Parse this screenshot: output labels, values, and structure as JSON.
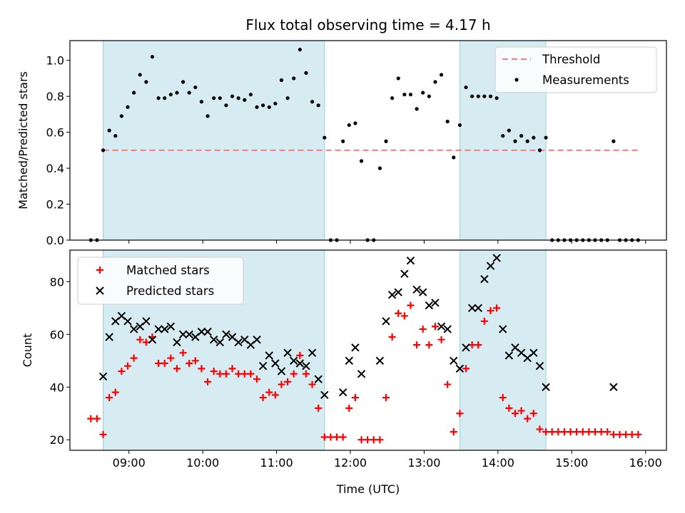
{
  "title": "Flux total observing time = 4.17 h",
  "colors": {
    "threshold": "#f08080",
    "measurements": "#000000",
    "matched": "#ff0000",
    "predicted": "#000000",
    "span": "#add8e6"
  },
  "chart_data": [
    {
      "type": "scatter",
      "ylabel": "Matched/Predicted stars",
      "xlabel": "",
      "xlim": [
        "08:12",
        "16:17"
      ],
      "ylim": [
        0,
        1.11
      ],
      "yticks": [
        "0.0",
        "0.2",
        "0.4",
        "0.6",
        "0.8",
        "1.0"
      ],
      "yticks_values": [
        0,
        0.2,
        0.4,
        0.6,
        0.8,
        1.0
      ],
      "xticks": [
        "09:00",
        "10:00",
        "11:00",
        "12:00",
        "13:00",
        "14:00",
        "15:00",
        "16:00"
      ],
      "legend": {
        "placement": "upper right",
        "entries": [
          "Threshold",
          "Measurements"
        ]
      },
      "shaded_spans": [
        [
          "08:39",
          "11:39"
        ],
        [
          "13:29",
          "14:39"
        ]
      ],
      "threshold": {
        "name": "Threshold",
        "y": 0.5,
        "x_range": [
          "08:39",
          "15:54"
        ]
      },
      "series": [
        {
          "name": "Measurements",
          "points": [
            [
              "08:29",
              0
            ],
            [
              "08:34",
              0
            ],
            [
              "08:39",
              0.5
            ],
            [
              "08:44",
              0.61
            ],
            [
              "08:49",
              0.58
            ],
            [
              "08:54",
              0.69
            ],
            [
              "08:59",
              0.74
            ],
            [
              "09:04",
              0.82
            ],
            [
              "09:09",
              0.92
            ],
            [
              "09:14",
              0.88
            ],
            [
              "09:19",
              1.02
            ],
            [
              "09:24",
              0.79
            ],
            [
              "09:29",
              0.79
            ],
            [
              "09:34",
              0.81
            ],
            [
              "09:39",
              0.82
            ],
            [
              "09:44",
              0.88
            ],
            [
              "09:49",
              0.82
            ],
            [
              "09:54",
              0.85
            ],
            [
              "09:59",
              0.77
            ],
            [
              "10:04",
              0.69
            ],
            [
              "10:09",
              0.79
            ],
            [
              "10:14",
              0.79
            ],
            [
              "10:19",
              0.75
            ],
            [
              "10:24",
              0.8
            ],
            [
              "10:29",
              0.79
            ],
            [
              "10:34",
              0.78
            ],
            [
              "10:39",
              0.81
            ],
            [
              "10:44",
              0.74
            ],
            [
              "10:49",
              0.75
            ],
            [
              "10:54",
              0.74
            ],
            [
              "10:59",
              0.76
            ],
            [
              "11:04",
              0.89
            ],
            [
              "11:09",
              0.79
            ],
            [
              "11:14",
              0.9
            ],
            [
              "11:19",
              1.06
            ],
            [
              "11:24",
              0.93
            ],
            [
              "11:29",
              0.77
            ],
            [
              "11:34",
              0.75
            ],
            [
              "11:39",
              0.57
            ],
            [
              "11:44",
              0
            ],
            [
              "11:49",
              0
            ],
            [
              "11:54",
              0.55
            ],
            [
              "11:59",
              0.64
            ],
            [
              "12:04",
              0.65
            ],
            [
              "12:09",
              0.44
            ],
            [
              "12:14",
              0
            ],
            [
              "12:19",
              0
            ],
            [
              "12:24",
              0.4
            ],
            [
              "12:29",
              0.55
            ],
            [
              "12:34",
              0.79
            ],
            [
              "12:39",
              0.9
            ],
            [
              "12:44",
              0.81
            ],
            [
              "12:49",
              0.81
            ],
            [
              "12:54",
              0.73
            ],
            [
              "12:59",
              0.82
            ],
            [
              "13:04",
              0.8
            ],
            [
              "13:09",
              0.88
            ],
            [
              "13:14",
              0.92
            ],
            [
              "13:19",
              0.66
            ],
            [
              "13:24",
              0.46
            ],
            [
              "13:29",
              0.64
            ],
            [
              "13:34",
              0.85
            ],
            [
              "13:39",
              0.8
            ],
            [
              "13:44",
              0.8
            ],
            [
              "13:49",
              0.8
            ],
            [
              "13:54",
              0.8
            ],
            [
              "13:59",
              0.79
            ],
            [
              "14:04",
              0.58
            ],
            [
              "14:09",
              0.61
            ],
            [
              "14:14",
              0.55
            ],
            [
              "14:19",
              0.58
            ],
            [
              "14:24",
              0.55
            ],
            [
              "14:29",
              0.57
            ],
            [
              "14:34",
              0.5
            ],
            [
              "14:39",
              0.57
            ],
            [
              "14:44",
              0
            ],
            [
              "14:49",
              0
            ],
            [
              "14:54",
              0
            ],
            [
              "14:59",
              0
            ],
            [
              "15:04",
              0
            ],
            [
              "15:09",
              0
            ],
            [
              "15:14",
              0
            ],
            [
              "15:19",
              0
            ],
            [
              "15:24",
              0
            ],
            [
              "15:29",
              0
            ],
            [
              "15:34",
              0.55
            ],
            [
              "15:39",
              0
            ],
            [
              "15:44",
              0
            ],
            [
              "15:49",
              0
            ],
            [
              "15:54",
              0
            ]
          ]
        }
      ]
    },
    {
      "type": "scatter",
      "ylabel": "Count",
      "xlabel": "Time (UTC)",
      "xlim": [
        "08:12",
        "16:17"
      ],
      "ylim": [
        16,
        92
      ],
      "yticks": [
        "20",
        "40",
        "60",
        "80"
      ],
      "yticks_values": [
        20,
        40,
        60,
        80
      ],
      "xticks": [
        "09:00",
        "10:00",
        "11:00",
        "12:00",
        "13:00",
        "14:00",
        "15:00",
        "16:00"
      ],
      "legend": {
        "placement": "upper left",
        "entries": [
          "Matched stars",
          "Predicted stars"
        ]
      },
      "shaded_spans": [
        [
          "08:39",
          "11:39"
        ],
        [
          "13:29",
          "14:39"
        ]
      ],
      "series": [
        {
          "name": "Matched stars",
          "points": [
            [
              "08:29",
              28
            ],
            [
              "08:34",
              28
            ],
            [
              "08:39",
              22
            ],
            [
              "08:44",
              36
            ],
            [
              "08:49",
              38
            ],
            [
              "08:54",
              46
            ],
            [
              "08:59",
              48
            ],
            [
              "09:04",
              51
            ],
            [
              "09:09",
              58
            ],
            [
              "09:14",
              57
            ],
            [
              "09:19",
              59
            ],
            [
              "09:24",
              49
            ],
            [
              "09:29",
              49
            ],
            [
              "09:34",
              51
            ],
            [
              "09:39",
              47
            ],
            [
              "09:44",
              53
            ],
            [
              "09:49",
              49
            ],
            [
              "09:54",
              50
            ],
            [
              "09:59",
              47
            ],
            [
              "10:04",
              42
            ],
            [
              "10:09",
              46
            ],
            [
              "10:14",
              45
            ],
            [
              "10:19",
              45
            ],
            [
              "10:24",
              47
            ],
            [
              "10:29",
              45
            ],
            [
              "10:34",
              45
            ],
            [
              "10:39",
              45
            ],
            [
              "10:44",
              43
            ],
            [
              "10:49",
              36
            ],
            [
              "10:54",
              38
            ],
            [
              "10:59",
              37
            ],
            [
              "11:04",
              41
            ],
            [
              "11:09",
              42
            ],
            [
              "11:14",
              45
            ],
            [
              "11:19",
              52
            ],
            [
              "11:24",
              45
            ],
            [
              "11:29",
              41
            ],
            [
              "11:34",
              32
            ],
            [
              "11:39",
              21
            ],
            [
              "11:44",
              21
            ],
            [
              "11:49",
              21
            ],
            [
              "11:54",
              21
            ],
            [
              "11:59",
              32
            ],
            [
              "12:04",
              36
            ],
            [
              "12:09",
              20
            ],
            [
              "12:14",
              20
            ],
            [
              "12:19",
              20
            ],
            [
              "12:24",
              20
            ],
            [
              "12:29",
              36
            ],
            [
              "12:34",
              59
            ],
            [
              "12:39",
              68
            ],
            [
              "12:44",
              67
            ],
            [
              "12:49",
              71
            ],
            [
              "12:54",
              56
            ],
            [
              "12:59",
              62
            ],
            [
              "13:04",
              56
            ],
            [
              "13:09",
              63
            ],
            [
              "13:14",
              58
            ],
            [
              "13:19",
              41
            ],
            [
              "13:24",
              23
            ],
            [
              "13:29",
              30
            ],
            [
              "13:34",
              47
            ],
            [
              "13:39",
              56
            ],
            [
              "13:44",
              56
            ],
            [
              "13:49",
              65
            ],
            [
              "13:54",
              69
            ],
            [
              "13:59",
              70
            ],
            [
              "14:04",
              36
            ],
            [
              "14:09",
              32
            ],
            [
              "14:14",
              30
            ],
            [
              "14:19",
              31
            ],
            [
              "14:24",
              28
            ],
            [
              "14:29",
              30
            ],
            [
              "14:34",
              24
            ],
            [
              "14:39",
              23
            ],
            [
              "14:44",
              23
            ],
            [
              "14:49",
              23
            ],
            [
              "14:54",
              23
            ],
            [
              "14:59",
              23
            ],
            [
              "15:04",
              23
            ],
            [
              "15:09",
              23
            ],
            [
              "15:14",
              23
            ],
            [
              "15:19",
              23
            ],
            [
              "15:24",
              23
            ],
            [
              "15:29",
              23
            ],
            [
              "15:34",
              22
            ],
            [
              "15:39",
              22
            ],
            [
              "15:44",
              22
            ],
            [
              "15:49",
              22
            ],
            [
              "15:54",
              22
            ]
          ]
        },
        {
          "name": "Predicted stars",
          "points": [
            [
              "08:39",
              44
            ],
            [
              "08:44",
              59
            ],
            [
              "08:49",
              65
            ],
            [
              "08:54",
              67
            ],
            [
              "08:59",
              65
            ],
            [
              "09:04",
              62
            ],
            [
              "09:09",
              63
            ],
            [
              "09:14",
              65
            ],
            [
              "09:19",
              58
            ],
            [
              "09:24",
              62
            ],
            [
              "09:29",
              62
            ],
            [
              "09:34",
              63
            ],
            [
              "09:39",
              57
            ],
            [
              "09:44",
              60
            ],
            [
              "09:49",
              60
            ],
            [
              "09:54",
              59
            ],
            [
              "09:59",
              61
            ],
            [
              "10:04",
              61
            ],
            [
              "10:09",
              58
            ],
            [
              "10:14",
              57
            ],
            [
              "10:19",
              60
            ],
            [
              "10:24",
              59
            ],
            [
              "10:29",
              57
            ],
            [
              "10:34",
              58
            ],
            [
              "10:39",
              56
            ],
            [
              "10:44",
              58
            ],
            [
              "10:49",
              48
            ],
            [
              "10:54",
              52
            ],
            [
              "10:59",
              49
            ],
            [
              "11:04",
              46
            ],
            [
              "11:09",
              53
            ],
            [
              "11:14",
              50
            ],
            [
              "11:19",
              49
            ],
            [
              "11:24",
              48
            ],
            [
              "11:29",
              53
            ],
            [
              "11:34",
              43
            ],
            [
              "11:39",
              37
            ],
            [
              "11:54",
              38
            ],
            [
              "11:59",
              50
            ],
            [
              "12:04",
              55
            ],
            [
              "12:09",
              45
            ],
            [
              "12:24",
              50
            ],
            [
              "12:29",
              65
            ],
            [
              "12:34",
              75
            ],
            [
              "12:39",
              76
            ],
            [
              "12:44",
              83
            ],
            [
              "12:49",
              88
            ],
            [
              "12:54",
              77
            ],
            [
              "12:59",
              76
            ],
            [
              "13:04",
              71
            ],
            [
              "13:09",
              72
            ],
            [
              "13:14",
              63
            ],
            [
              "13:19",
              62
            ],
            [
              "13:24",
              50
            ],
            [
              "13:29",
              47
            ],
            [
              "13:34",
              55
            ],
            [
              "13:39",
              70
            ],
            [
              "13:44",
              70
            ],
            [
              "13:49",
              81
            ],
            [
              "13:54",
              86
            ],
            [
              "13:59",
              89
            ],
            [
              "14:04",
              62
            ],
            [
              "14:09",
              52
            ],
            [
              "14:14",
              55
            ],
            [
              "14:19",
              53
            ],
            [
              "14:24",
              51
            ],
            [
              "14:29",
              53
            ],
            [
              "14:34",
              48
            ],
            [
              "14:39",
              40
            ],
            [
              "15:34",
              40
            ]
          ]
        }
      ]
    }
  ]
}
